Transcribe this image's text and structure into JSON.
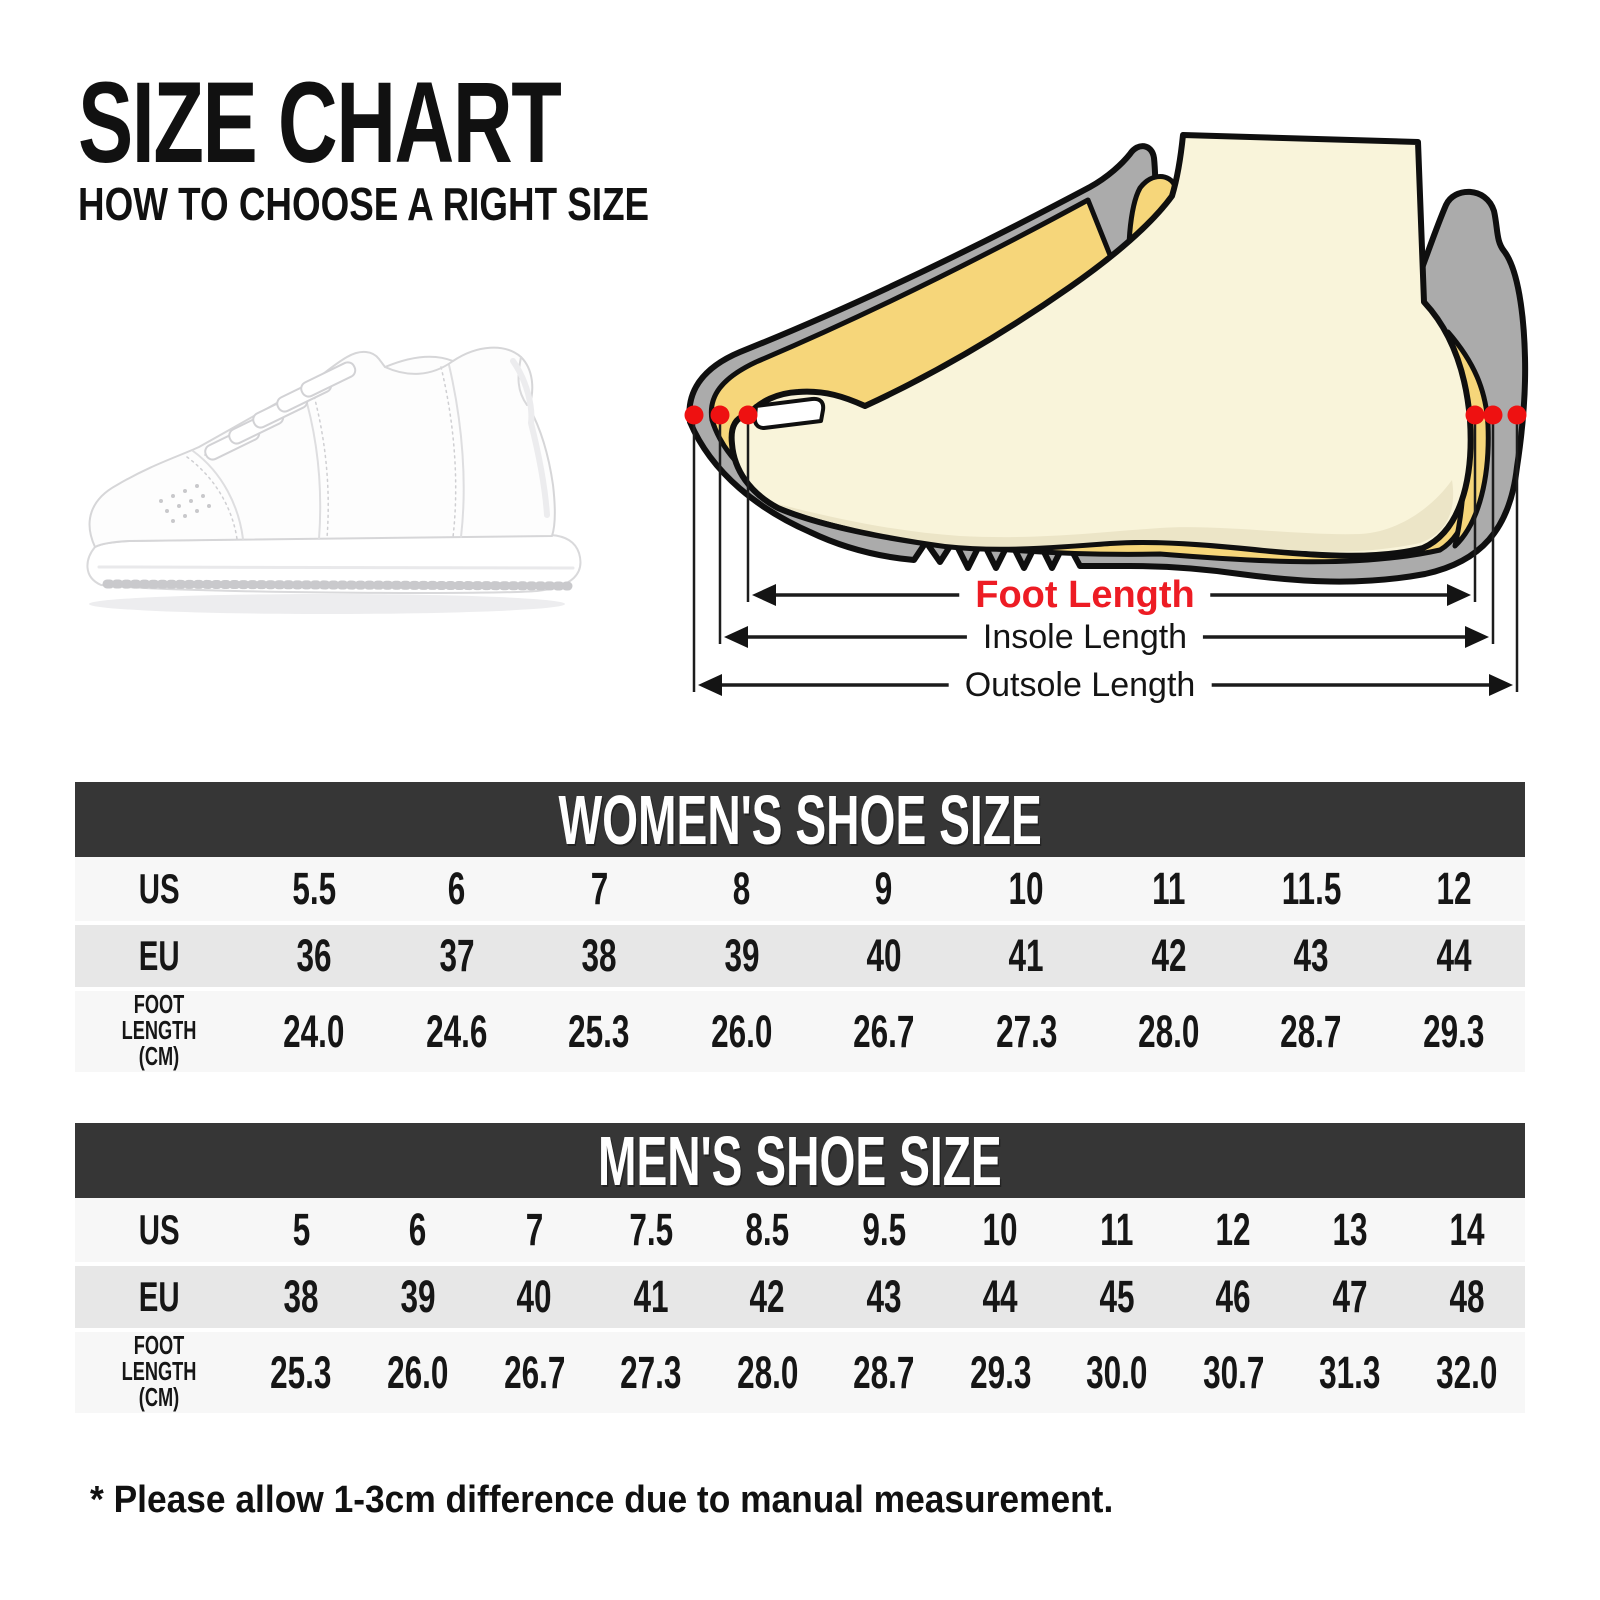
{
  "header": {
    "title": "SIZE CHART",
    "subtitle": "HOW TO CHOOSE A RIGHT SIZE"
  },
  "diagram": {
    "foot_length_label": "Foot Length",
    "insole_length_label": "Insole Length",
    "outsole_length_label": "Outsole Length"
  },
  "tables": {
    "women": {
      "title": "WOMEN'S SHOE SIZE",
      "rows": [
        {
          "label": "US",
          "values": [
            "5.5",
            "6",
            "7",
            "8",
            "9",
            "10",
            "11",
            "11.5",
            "12"
          ]
        },
        {
          "label": "EU",
          "values": [
            "36",
            "37",
            "38",
            "39",
            "40",
            "41",
            "42",
            "43",
            "44"
          ]
        },
        {
          "label": "FOOT\nLENGTH (CM)",
          "values": [
            "24.0",
            "24.6",
            "25.3",
            "26.0",
            "26.7",
            "27.3",
            "28.0",
            "28.7",
            "29.3"
          ]
        }
      ]
    },
    "men": {
      "title": "MEN'S SHOE SIZE",
      "rows": [
        {
          "label": "US",
          "values": [
            "5",
            "6",
            "7",
            "7.5",
            "8.5",
            "9.5",
            "10",
            "11",
            "12",
            "13",
            "14"
          ]
        },
        {
          "label": "EU",
          "values": [
            "38",
            "39",
            "40",
            "41",
            "42",
            "43",
            "44",
            "45",
            "46",
            "47",
            "48"
          ]
        },
        {
          "label": "FOOT\nLENGTH (CM)",
          "values": [
            "25.3",
            "26.0",
            "26.7",
            "27.3",
            "28.0",
            "28.7",
            "29.3",
            "30.0",
            "30.7",
            "31.3",
            "32.0"
          ]
        }
      ]
    }
  },
  "footnote": "* Please allow 1-3cm difference due to manual measurement.",
  "colors": {
    "header_bg": "#363636",
    "row_light": "#f7f7f7",
    "row_shaded": "#e7e7e7",
    "accent_red": "#ed1c24",
    "marker_red": "#ee1111",
    "outsole_gray": "#ababab",
    "insole_yellow": "#f6d67a",
    "foot_cream": "#f9f4da"
  }
}
